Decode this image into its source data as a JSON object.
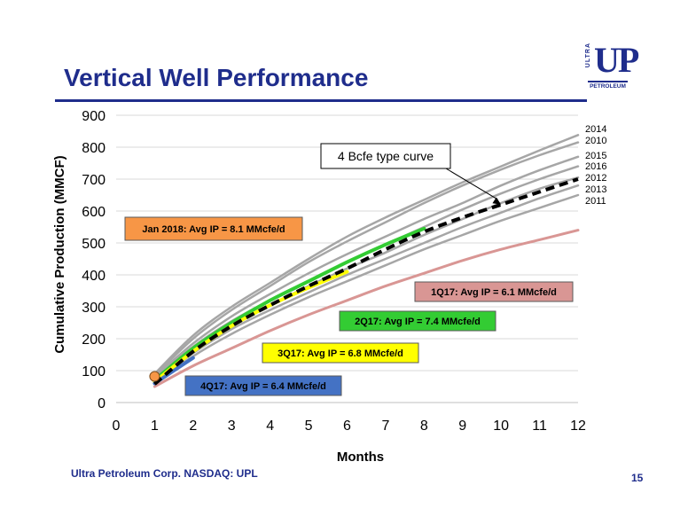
{
  "page": {
    "title": "Vertical Well Performance",
    "footer": "Ultra Petroleum Corp. NASDAQ: UPL",
    "page_number": "15",
    "logo": {
      "mark": "UP",
      "side_text": "ULTRA",
      "sub_text": "PETROLEUM"
    }
  },
  "colors": {
    "title": "#1F2D8C",
    "grid": "#D9D9D9",
    "annual": "#A6A6A6",
    "type_curve": "#000000",
    "q1_2017": "#D99694",
    "q2_2017": "#33CC33",
    "q3_2017": "#FFFF00",
    "q4_2017": "#4472C4",
    "jan_2018": "#F79646"
  },
  "chart_data": {
    "type": "line",
    "xlabel": "Months",
    "ylabel": "Cumulative Production (MMCF)",
    "xlim": [
      0,
      12
    ],
    "ylim": [
      0,
      900
    ],
    "x_ticks": [
      0,
      1,
      2,
      3,
      4,
      5,
      6,
      7,
      8,
      9,
      10,
      11,
      12
    ],
    "y_ticks": [
      0,
      100,
      200,
      300,
      400,
      500,
      600,
      700,
      800,
      900
    ],
    "grid": "horizontal",
    "series": [
      {
        "name": "2014",
        "style": "annual",
        "x": [
          1,
          2,
          3,
          4,
          5,
          6,
          7,
          8,
          9,
          10,
          11,
          12
        ],
        "y": [
          90,
          210,
          300,
          375,
          450,
          520,
          580,
          635,
          690,
          740,
          790,
          838
        ]
      },
      {
        "name": "2010",
        "style": "annual",
        "x": [
          1,
          2,
          3,
          4,
          5,
          6,
          7,
          8,
          9,
          10,
          11,
          12
        ],
        "y": [
          85,
          200,
          290,
          365,
          440,
          505,
          565,
          625,
          680,
          730,
          775,
          815
        ]
      },
      {
        "name": "2015",
        "style": "annual",
        "x": [
          1,
          2,
          3,
          4,
          5,
          6,
          7,
          8,
          9,
          10,
          11,
          12
        ],
        "y": [
          80,
          185,
          270,
          340,
          405,
          465,
          520,
          575,
          625,
          680,
          728,
          770
        ]
      },
      {
        "name": "2016",
        "style": "annual",
        "x": [
          1,
          2,
          3,
          4,
          5,
          6,
          7,
          8,
          9,
          10,
          11,
          12
        ],
        "y": [
          75,
          175,
          255,
          320,
          380,
          440,
          495,
          550,
          605,
          655,
          700,
          740
        ]
      },
      {
        "name": "2012",
        "style": "annual",
        "x": [
          1,
          2,
          3,
          4,
          5,
          6,
          7,
          8,
          9,
          10,
          11,
          12
        ],
        "y": [
          70,
          165,
          240,
          305,
          365,
          420,
          470,
          525,
          575,
          625,
          670,
          705
        ]
      },
      {
        "name": "2013",
        "style": "annual",
        "x": [
          1,
          2,
          3,
          4,
          5,
          6,
          7,
          8,
          9,
          10,
          11,
          12
        ],
        "y": [
          65,
          155,
          230,
          290,
          345,
          400,
          450,
          500,
          550,
          595,
          640,
          680
        ]
      },
      {
        "name": "2011",
        "style": "annual",
        "x": [
          1,
          2,
          3,
          4,
          5,
          6,
          7,
          8,
          9,
          10,
          11,
          12
        ],
        "y": [
          60,
          145,
          215,
          275,
          330,
          380,
          430,
          480,
          525,
          570,
          610,
          650
        ]
      },
      {
        "name": "1Q17",
        "style": "q1_2017",
        "x": [
          1,
          2,
          3,
          4,
          5,
          6,
          7,
          8,
          9,
          10,
          11,
          12
        ],
        "y": [
          50,
          115,
          170,
          225,
          275,
          320,
          365,
          405,
          445,
          480,
          510,
          540
        ]
      },
      {
        "name": "2Q17",
        "style": "q2_2017",
        "x": [
          1,
          2,
          3,
          4,
          5,
          6,
          7,
          8
        ],
        "y": [
          70,
          170,
          250,
          320,
          380,
          440,
          495,
          545
        ]
      },
      {
        "name": "3Q17",
        "style": "q3_2017",
        "x": [
          1,
          2,
          3,
          4,
          5,
          6
        ],
        "y": [
          65,
          160,
          240,
          305,
          360,
          410
        ]
      },
      {
        "name": "4Q17",
        "style": "q4_2017",
        "x": [
          1,
          2
        ],
        "y": [
          60,
          140
        ]
      },
      {
        "name": "4 Bcfe type curve",
        "style": "type_curve",
        "x": [
          1,
          2,
          3,
          4,
          5,
          6,
          7,
          8,
          9,
          10,
          11,
          12
        ],
        "y": [
          58,
          160,
          240,
          305,
          365,
          420,
          480,
          535,
          580,
          620,
          660,
          700
        ]
      },
      {
        "name": "Jan 2018",
        "style": "jan_2018",
        "type": "point",
        "x": [
          1
        ],
        "y": [
          82
        ]
      }
    ],
    "end_labels": [
      "2014",
      "2010",
      "2015",
      "2016",
      "2012",
      "2013",
      "2011"
    ],
    "annotations": [
      {
        "text": "4 Bcfe type curve",
        "style": "callout",
        "arrow_to": [
          10,
          620
        ]
      },
      {
        "text": "Jan 2018:  Avg IP = 8.1 MMcfe/d",
        "style": "jan_2018"
      },
      {
        "text": "1Q17:  Avg IP = 6.1 MMcfe/d",
        "style": "q1_2017"
      },
      {
        "text": "2Q17:  Avg IP = 7.4 MMcfe/d",
        "style": "q2_2017"
      },
      {
        "text": "3Q17:  Avg IP = 6.8 MMcfe/d",
        "style": "q3_2017"
      },
      {
        "text": "4Q17:  Avg IP = 6.4 MMcfe/d",
        "style": "q4_2017"
      }
    ]
  }
}
